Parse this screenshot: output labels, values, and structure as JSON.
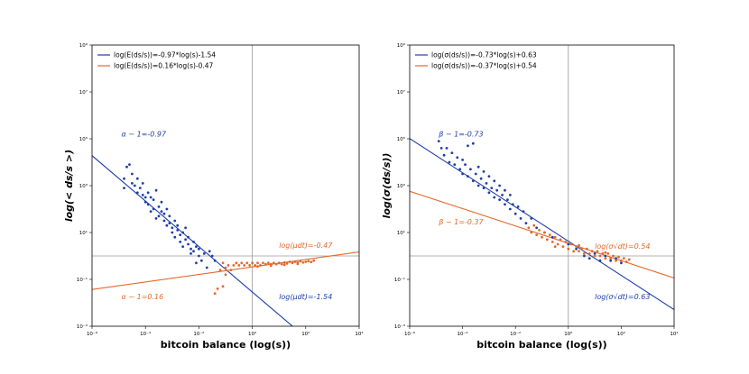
{
  "chart_data": [
    {
      "type": "scatter",
      "xlabel": "bitcoin balance (log(s))",
      "ylabel": "log(< ds/s >)",
      "x_ticks": [
        "10⁻⁶",
        "10⁻⁴",
        "10⁻²",
        "10⁰",
        "10²",
        "10⁴"
      ],
      "y_ticks": [
        "10⁻³",
        "10⁻¹",
        "10¹",
        "10³",
        "10⁵",
        "10⁷",
        "10⁹"
      ],
      "xlim_log10": [
        -6,
        4
      ],
      "ylim_log10": [
        -3,
        9
      ],
      "scale": "log-log",
      "reference_lines": {
        "x_log10": 0,
        "y_log10": 0
      },
      "legend": {
        "placement": "top-left",
        "entries": [
          {
            "label": "log(E(ds/s))=-0.97*log(s)-1.54",
            "color": "#1f3fa8"
          },
          {
            "label": "log(E(ds/s))=0.16*log(s)-0.47",
            "color": "#e4692a"
          }
        ]
      },
      "fit_lines": [
        {
          "slope": -0.97,
          "intercept": -1.54,
          "color": "#1f3fa8"
        },
        {
          "slope": 0.16,
          "intercept": -0.47,
          "color": "#e4692a"
        }
      ],
      "annotations": [
        {
          "text": "α − 1=-0.97",
          "color": "#1f3fa8",
          "x_log10": -4.9,
          "y_log10": 5.1
        },
        {
          "text": "α − 1=0.16",
          "color": "#e4692a",
          "x_log10": -4.9,
          "y_log10": -1.85
        },
        {
          "text": "log(μdt)=-0.47",
          "color": "#e4692a",
          "x_log10": 1.0,
          "y_log10": 0.35
        },
        {
          "text": "log(μdt)=-1.54",
          "color": "#1f3fa8",
          "x_log10": 1.0,
          "y_log10": -1.85
        }
      ],
      "series": [
        {
          "name": "blue",
          "color": "#1f3fa8",
          "points": [
            [
              -4.8,
              2.9
            ],
            [
              -4.8,
              3.3
            ],
            [
              -4.7,
              3.8
            ],
            [
              -4.6,
              3.9
            ],
            [
              -4.5,
              3.5
            ],
            [
              -4.5,
              3.1
            ],
            [
              -4.4,
              3.0
            ],
            [
              -4.3,
              3.3
            ],
            [
              -4.3,
              2.7
            ],
            [
              -4.2,
              2.9
            ],
            [
              -4.1,
              2.6
            ],
            [
              -4.1,
              3.1
            ],
            [
              -4.0,
              2.5
            ],
            [
              -4.0,
              2.3
            ],
            [
              -3.9,
              2.7
            ],
            [
              -3.9,
              2.2
            ],
            [
              -3.8,
              2.5
            ],
            [
              -3.8,
              1.9
            ],
            [
              -3.7,
              2.4
            ],
            [
              -3.7,
              2.0
            ],
            [
              -3.6,
              1.6
            ],
            [
              -3.6,
              2.8
            ],
            [
              -3.5,
              2.1
            ],
            [
              -3.5,
              1.7
            ],
            [
              -3.4,
              1.9
            ],
            [
              -3.4,
              2.3
            ],
            [
              -3.3,
              1.5
            ],
            [
              -3.3,
              1.8
            ],
            [
              -3.2,
              1.3
            ],
            [
              -3.2,
              2.0
            ],
            [
              -3.1,
              1.4
            ],
            [
              -3.1,
              1.7
            ],
            [
              -3.0,
              1.2
            ],
            [
              -3.0,
              1.0
            ],
            [
              -2.9,
              1.5
            ],
            [
              -2.9,
              0.8
            ],
            [
              -2.8,
              1.1
            ],
            [
              -2.8,
              1.3
            ],
            [
              -2.7,
              0.9
            ],
            [
              -2.7,
              0.6
            ],
            [
              -2.6,
              1.0
            ],
            [
              -2.6,
              0.4
            ],
            [
              -2.5,
              0.7
            ],
            [
              -2.5,
              1.2
            ],
            [
              -2.4,
              0.5
            ],
            [
              -2.4,
              0.8
            ],
            [
              -2.3,
              0.3
            ],
            [
              -2.3,
              0.1
            ],
            [
              -2.2,
              0.6
            ],
            [
              -2.2,
              0.2
            ],
            [
              -2.1,
              0.4
            ],
            [
              -2.1,
              -0.3
            ],
            [
              -2.0,
              0.0
            ],
            [
              -2.0,
              0.3
            ],
            [
              -1.9,
              -0.2
            ],
            [
              -1.8,
              0.1
            ],
            [
              -1.6,
              0.2
            ],
            [
              -1.5,
              0.0
            ],
            [
              -1.4,
              -0.2
            ],
            [
              -1.7,
              -0.5
            ]
          ]
        },
        {
          "name": "orange",
          "color": "#e4692a",
          "points": [
            [
              -1.4,
              -1.6
            ],
            [
              -1.3,
              -1.4
            ],
            [
              -1.2,
              -0.6
            ],
            [
              -1.1,
              -0.3
            ],
            [
              -1.0,
              -0.5
            ],
            [
              -1.0,
              -0.8
            ],
            [
              -0.9,
              -0.4
            ],
            [
              -0.8,
              -0.6
            ],
            [
              -0.7,
              -0.4
            ],
            [
              -0.6,
              -0.3
            ],
            [
              -0.5,
              -0.4
            ],
            [
              -0.4,
              -0.3
            ],
            [
              -0.3,
              -0.4
            ],
            [
              -0.2,
              -0.3
            ],
            [
              -0.1,
              -0.4
            ],
            [
              0.0,
              -0.3
            ],
            [
              0.1,
              -0.4
            ],
            [
              0.2,
              -0.3
            ],
            [
              0.3,
              -0.4
            ],
            [
              0.4,
              -0.3
            ],
            [
              0.5,
              -0.35
            ],
            [
              0.6,
              -0.3
            ],
            [
              0.7,
              -0.35
            ],
            [
              0.8,
              -0.3
            ],
            [
              0.9,
              -0.35
            ],
            [
              1.0,
              -0.3
            ],
            [
              1.1,
              -0.35
            ],
            [
              1.2,
              -0.28
            ],
            [
              1.3,
              -0.32
            ],
            [
              1.4,
              -0.25
            ],
            [
              1.5,
              -0.3
            ],
            [
              1.6,
              -0.25
            ],
            [
              1.7,
              -0.28
            ],
            [
              1.8,
              -0.22
            ],
            [
              1.9,
              -0.28
            ],
            [
              2.0,
              -0.25
            ],
            [
              2.1,
              -0.22
            ],
            [
              2.2,
              -0.26
            ],
            [
              2.3,
              -0.2
            ],
            [
              0.2,
              -0.45
            ],
            [
              0.7,
              -0.42
            ],
            [
              1.2,
              -0.38
            ],
            [
              1.7,
              -0.34
            ],
            [
              -1.1,
              -1.3
            ]
          ]
        }
      ]
    },
    {
      "type": "scatter",
      "xlabel": "bitcoin balance (log(s))",
      "ylabel": "log(σ(ds/s))",
      "x_ticks": [
        "10⁻⁶",
        "10⁻⁴",
        "10⁻²",
        "10⁰",
        "10²",
        "10⁴"
      ],
      "y_ticks": [
        "10⁻³",
        "10⁻¹",
        "10¹",
        "10³",
        "10⁵",
        "10⁷",
        "10⁹"
      ],
      "xlim_log10": [
        -6,
        4
      ],
      "ylim_log10": [
        -3,
        9
      ],
      "scale": "log-log",
      "reference_lines": {
        "x_log10": 0,
        "y_log10": 0
      },
      "legend": {
        "placement": "top-left",
        "entries": [
          {
            "label": "log(σ(ds/s))=-0.73*log(s)+0.63",
            "color": "#1f3fa8"
          },
          {
            "label": "log(σ(ds/s))=-0.37*log(s)+0.54",
            "color": "#e4692a"
          }
        ]
      },
      "fit_lines": [
        {
          "slope": -0.73,
          "intercept": 0.63,
          "color": "#1f3fa8"
        },
        {
          "slope": -0.37,
          "intercept": 0.54,
          "color": "#e4692a"
        }
      ],
      "annotations": [
        {
          "text": "β − 1=-0.73",
          "color": "#1f3fa8",
          "x_log10": -4.9,
          "y_log10": 5.1
        },
        {
          "text": "β − 1=-0.37",
          "color": "#e4692a",
          "x_log10": -4.9,
          "y_log10": 1.35
        },
        {
          "text": "log(σ√dt)=0.54",
          "color": "#e4692a",
          "x_log10": 1.0,
          "y_log10": 0.3
        },
        {
          "text": "log(σ√dt)=0.63",
          "color": "#1f3fa8",
          "x_log10": 1.0,
          "y_log10": -1.85
        }
      ],
      "series": [
        {
          "name": "blue",
          "color": "#1f3fa8",
          "points": [
            [
              -4.9,
              4.9
            ],
            [
              -4.8,
              4.6
            ],
            [
              -4.7,
              4.3
            ],
            [
              -4.6,
              4.6
            ],
            [
              -4.5,
              4.0
            ],
            [
              -4.4,
              4.4
            ],
            [
              -4.3,
              3.9
            ],
            [
              -4.2,
              4.2
            ],
            [
              -4.1,
              3.7
            ],
            [
              -4.0,
              4.1
            ],
            [
              -4.0,
              3.5
            ],
            [
              -3.9,
              3.9
            ],
            [
              -3.8,
              3.4
            ],
            [
              -3.8,
              4.7
            ],
            [
              -3.7,
              3.7
            ],
            [
              -3.6,
              3.2
            ],
            [
              -3.6,
              4.8
            ],
            [
              -3.5,
              3.5
            ],
            [
              -3.4,
              3.0
            ],
            [
              -3.4,
              3.8
            ],
            [
              -3.3,
              3.3
            ],
            [
              -3.2,
              2.9
            ],
            [
              -3.2,
              3.6
            ],
            [
              -3.1,
              3.1
            ],
            [
              -3.0,
              2.7
            ],
            [
              -3.0,
              3.4
            ],
            [
              -2.9,
              2.9
            ],
            [
              -2.8,
              2.5
            ],
            [
              -2.8,
              3.2
            ],
            [
              -2.7,
              2.8
            ],
            [
              -2.6,
              2.4
            ],
            [
              -2.6,
              3.0
            ],
            [
              -2.5,
              2.6
            ],
            [
              -2.4,
              2.2
            ],
            [
              -2.4,
              2.8
            ],
            [
              -2.3,
              2.4
            ],
            [
              -2.2,
              2.0
            ],
            [
              -2.2,
              2.6
            ],
            [
              -2.1,
              2.2
            ],
            [
              -2.0,
              1.8
            ],
            [
              -1.9,
              2.1
            ],
            [
              -1.8,
              1.6
            ],
            [
              -1.7,
              1.9
            ],
            [
              -1.6,
              1.4
            ],
            [
              -1.4,
              1.6
            ],
            [
              -1.2,
              1.2
            ],
            [
              -0.9,
              1.0
            ],
            [
              0.6,
              0.0
            ],
            [
              0.8,
              -0.1
            ],
            [
              1.0,
              0.1
            ],
            [
              1.2,
              -0.2
            ],
            [
              1.4,
              0.0
            ],
            [
              1.6,
              -0.2
            ],
            [
              1.8,
              -0.1
            ],
            [
              2.0,
              -0.3
            ],
            [
              -0.6,
              0.8
            ],
            [
              0.3,
              0.3
            ],
            [
              0.0,
              0.5
            ]
          ]
        },
        {
          "name": "orange",
          "color": "#e4692a",
          "points": [
            [
              -1.5,
              1.2
            ],
            [
              -1.4,
              1.0
            ],
            [
              -1.3,
              1.3
            ],
            [
              -1.2,
              0.9
            ],
            [
              -1.1,
              1.1
            ],
            [
              -1.0,
              0.8
            ],
            [
              -0.9,
              1.0
            ],
            [
              -0.8,
              0.7
            ],
            [
              -0.7,
              0.9
            ],
            [
              -0.6,
              0.6
            ],
            [
              -0.5,
              0.8
            ],
            [
              -0.4,
              0.5
            ],
            [
              -0.3,
              0.7
            ],
            [
              -0.2,
              0.4
            ],
            [
              -0.1,
              0.6
            ],
            [
              0.0,
              0.3
            ],
            [
              0.1,
              0.5
            ],
            [
              0.2,
              0.2
            ],
            [
              0.3,
              0.4
            ],
            [
              0.4,
              0.2
            ],
            [
              0.5,
              0.3
            ],
            [
              0.6,
              0.1
            ],
            [
              0.7,
              0.3
            ],
            [
              0.8,
              0.1
            ],
            [
              0.9,
              0.2
            ],
            [
              1.0,
              0.0
            ],
            [
              1.1,
              0.2
            ],
            [
              1.2,
              0.0
            ],
            [
              1.3,
              0.1
            ],
            [
              1.4,
              -0.1
            ],
            [
              1.5,
              0.1
            ],
            [
              1.6,
              -0.1
            ],
            [
              1.7,
              0.0
            ],
            [
              1.8,
              -0.2
            ],
            [
              1.9,
              -0.05
            ],
            [
              2.0,
              -0.2
            ],
            [
              2.1,
              -0.1
            ],
            [
              2.2,
              -0.25
            ],
            [
              2.3,
              -0.15
            ],
            [
              -0.5,
              0.4
            ],
            [
              0.4,
              0.45
            ],
            [
              1.4,
              0.15
            ]
          ]
        }
      ]
    }
  ]
}
